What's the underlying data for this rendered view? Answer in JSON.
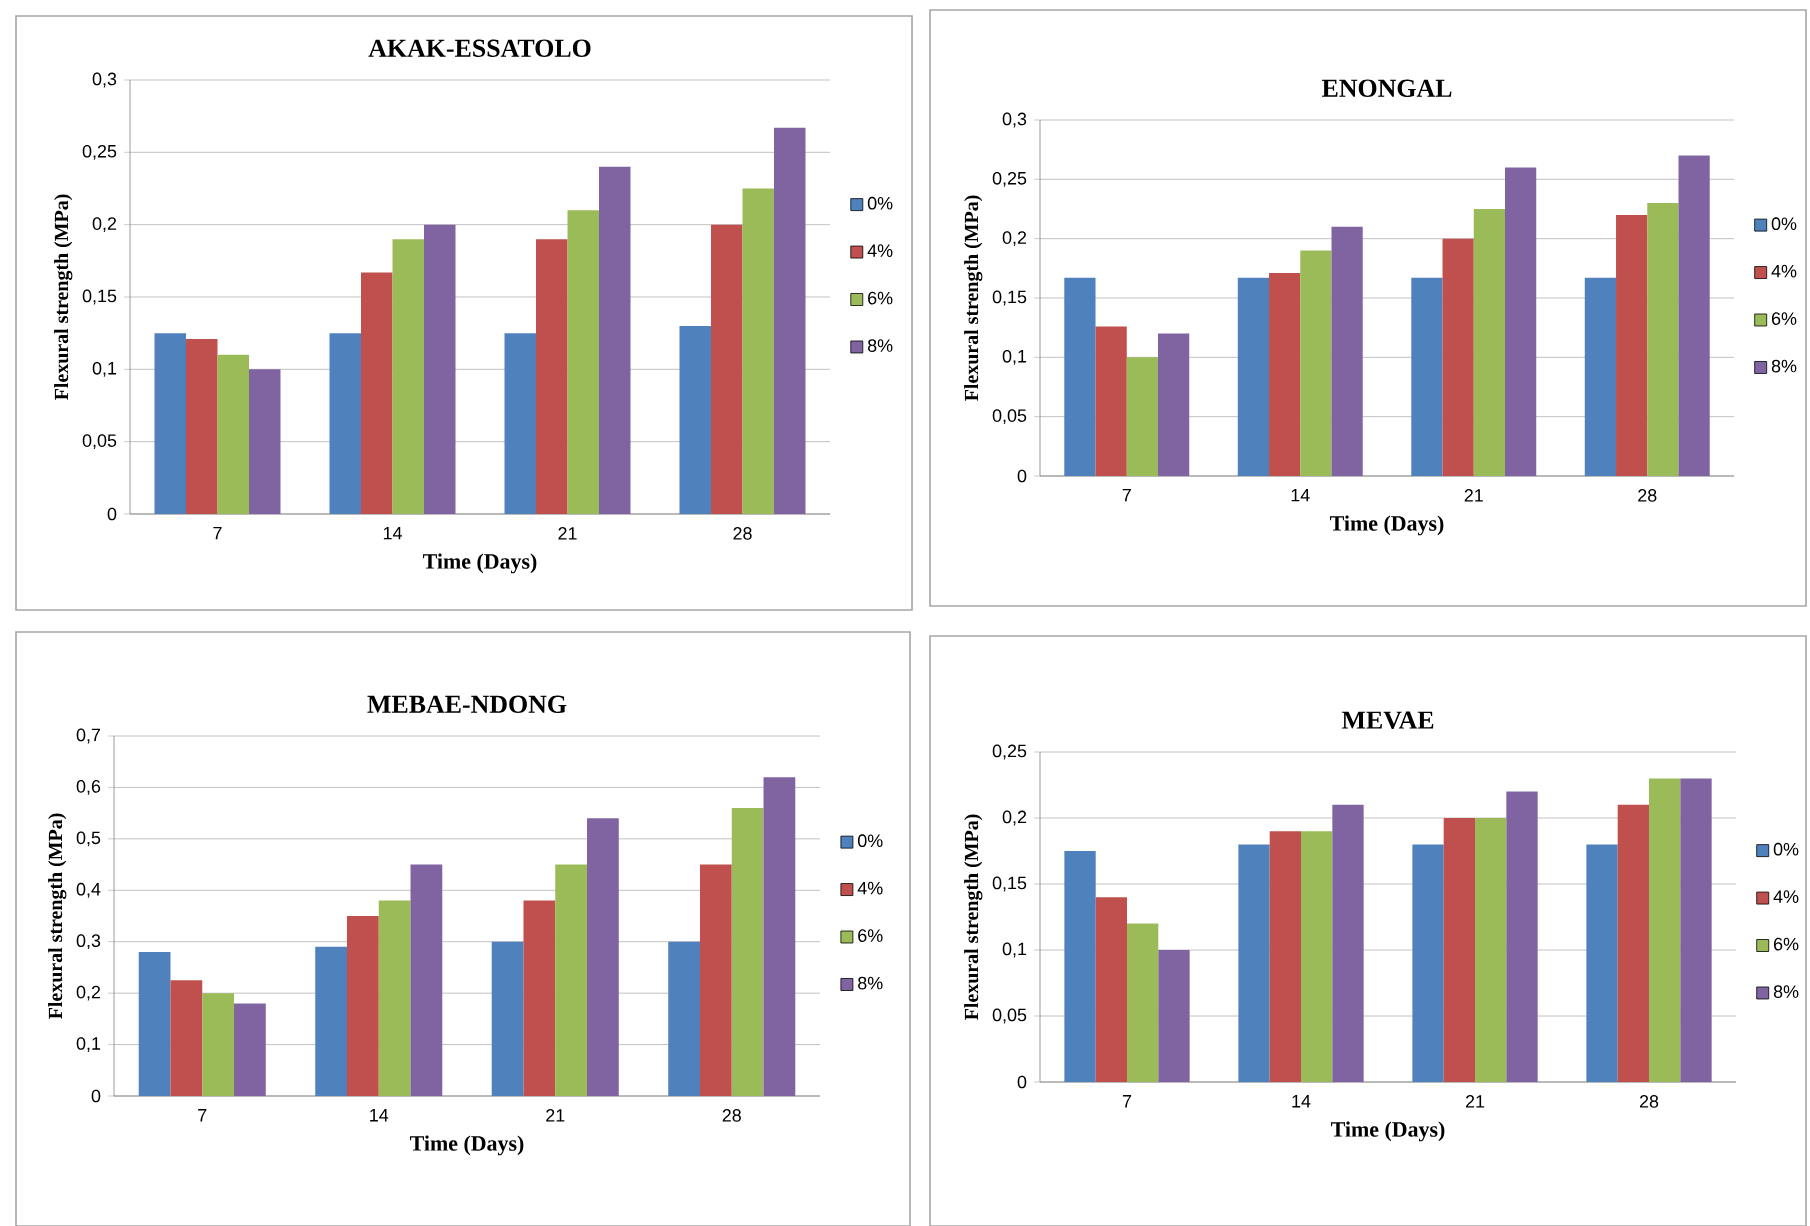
{
  "chart_data": [
    {
      "type": "bar",
      "title": "AKAK-ESSATOLO",
      "xlabel": "Time (Days)",
      "ylabel": "Flexural strength  (MPa)",
      "categories": [
        "7",
        "14",
        "21",
        "28"
      ],
      "series": [
        {
          "name": "0%",
          "color": "#4f81bd",
          "values": [
            0.125,
            0.125,
            0.125,
            0.13
          ]
        },
        {
          "name": "4%",
          "color": "#c0504d",
          "values": [
            0.121,
            0.167,
            0.19,
            0.2
          ]
        },
        {
          "name": "6%",
          "color": "#9bbb59",
          "values": [
            0.11,
            0.19,
            0.21,
            0.225
          ]
        },
        {
          "name": "8%",
          "color": "#8064a2",
          "values": [
            0.1,
            0.2,
            0.24,
            0.267
          ]
        }
      ],
      "ylim": [
        0,
        0.3
      ],
      "yticks": [
        0,
        {
          "value": 0.05,
          "label": "0,05"
        },
        {
          "value": 0.1,
          "label": "0,1"
        },
        {
          "value": 0.15,
          "label": "0,15"
        },
        {
          "value": 0.2,
          "label": "0,2"
        },
        {
          "value": 0.25,
          "label": "0,25"
        },
        {
          "value": 0.3,
          "label": "0,3"
        }
      ],
      "grid": "y",
      "legend": "right"
    },
    {
      "type": "bar",
      "title": "ENONGAL",
      "xlabel": "Time (Days)",
      "ylabel": "Flexural strength  (MPa)",
      "categories": [
        "7",
        "14",
        "21",
        "28"
      ],
      "series": [
        {
          "name": "0%",
          "color": "#4f81bd",
          "values": [
            0.167,
            0.167,
            0.167,
            0.167
          ]
        },
        {
          "name": "4%",
          "color": "#c0504d",
          "values": [
            0.126,
            0.171,
            0.2,
            0.22
          ]
        },
        {
          "name": "6%",
          "color": "#9bbb59",
          "values": [
            0.1,
            0.19,
            0.225,
            0.23
          ]
        },
        {
          "name": "8%",
          "color": "#8064a2",
          "values": [
            0.12,
            0.21,
            0.26,
            0.27
          ]
        }
      ],
      "ylim": [
        0,
        0.3
      ],
      "yticks": [
        0,
        {
          "value": 0.05,
          "label": "0,05"
        },
        {
          "value": 0.1,
          "label": "0,1"
        },
        {
          "value": 0.15,
          "label": "0,15"
        },
        {
          "value": 0.2,
          "label": "0,2"
        },
        {
          "value": 0.25,
          "label": "0,25"
        },
        {
          "value": 0.3,
          "label": "0,3"
        }
      ],
      "grid": "y",
      "legend": "right"
    },
    {
      "type": "bar",
      "title": "MEBAE-NDONG",
      "xlabel": "Time (Days)",
      "ylabel": "Flexural strength  (MPa)",
      "categories": [
        "7",
        "14",
        "21",
        "28"
      ],
      "series": [
        {
          "name": "0%",
          "color": "#4f81bd",
          "values": [
            0.28,
            0.29,
            0.3,
            0.3
          ]
        },
        {
          "name": "4%",
          "color": "#c0504d",
          "values": [
            0.225,
            0.35,
            0.38,
            0.45
          ]
        },
        {
          "name": "6%",
          "color": "#9bbb59",
          "values": [
            0.2,
            0.38,
            0.45,
            0.56
          ]
        },
        {
          "name": "8%",
          "color": "#8064a2",
          "values": [
            0.18,
            0.45,
            0.54,
            0.62
          ]
        }
      ],
      "ylim": [
        0,
        0.7
      ],
      "yticks": [
        0,
        {
          "value": 0.1,
          "label": "0,1"
        },
        {
          "value": 0.2,
          "label": "0,2"
        },
        {
          "value": 0.3,
          "label": "0,3"
        },
        {
          "value": 0.4,
          "label": "0,4"
        },
        {
          "value": 0.5,
          "label": "0,5"
        },
        {
          "value": 0.6,
          "label": "0,6"
        },
        {
          "value": 0.7,
          "label": "0,7"
        }
      ],
      "grid": "y",
      "legend": "right"
    },
    {
      "type": "bar",
      "title": "MEVAE",
      "xlabel": "Time (Days)",
      "ylabel": "Flexural strength  (MPa)",
      "categories": [
        "7",
        "14",
        "21",
        "28"
      ],
      "series": [
        {
          "name": "0%",
          "color": "#4f81bd",
          "values": [
            0.175,
            0.18,
            0.18,
            0.18
          ]
        },
        {
          "name": "4%",
          "color": "#c0504d",
          "values": [
            0.14,
            0.19,
            0.2,
            0.21
          ]
        },
        {
          "name": "6%",
          "color": "#9bbb59",
          "values": [
            0.12,
            0.19,
            0.2,
            0.23
          ]
        },
        {
          "name": "8%",
          "color": "#8064a2",
          "values": [
            0.1,
            0.21,
            0.22,
            0.23
          ]
        }
      ],
      "ylim": [
        0,
        0.25
      ],
      "yticks": [
        0,
        {
          "value": 0.05,
          "label": "0,05"
        },
        {
          "value": 0.1,
          "label": "0,1"
        },
        {
          "value": 0.15,
          "label": "0,15"
        },
        {
          "value": 0.2,
          "label": "0,2"
        },
        {
          "value": 0.25,
          "label": "0,25"
        }
      ],
      "grid": "y",
      "legend": "right"
    }
  ]
}
